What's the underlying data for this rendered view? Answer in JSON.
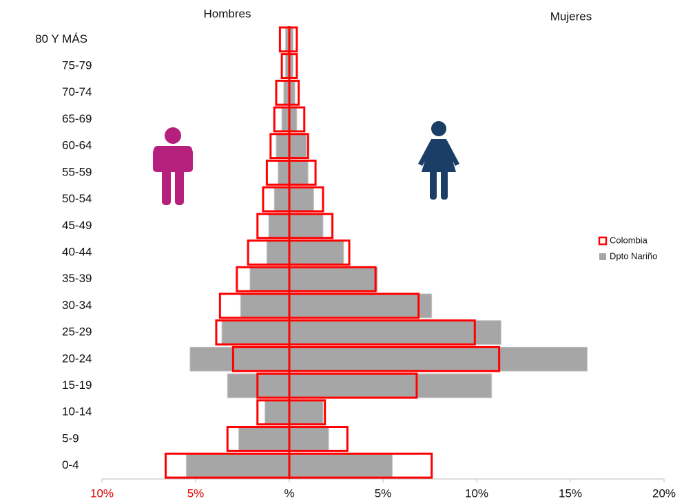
{
  "chart_data": {
    "type": "population-pyramid",
    "left_label": "Hombres",
    "right_label": "Mujeres",
    "categories": [
      "80 Y MÁS",
      "75-79",
      "70-74",
      "65-69",
      "60-64",
      "55-59",
      "50-54",
      "45-49",
      "40-44",
      "35-39",
      "30-34",
      "25-29",
      "20-24",
      "15-19",
      "10-14",
      "5-9",
      "0-4"
    ],
    "series": [
      {
        "name": "Dpto Nariño",
        "color": "#a6a6a6",
        "style": "filled",
        "hombres": [
          -0.2,
          -0.2,
          -0.3,
          -0.4,
          -0.7,
          -0.6,
          -0.8,
          -1.1,
          -1.2,
          -2.1,
          -2.6,
          -3.6,
          -5.3,
          -3.3,
          -1.3,
          -2.7,
          -5.5
        ],
        "mujeres": [
          0.2,
          0.2,
          0.3,
          0.4,
          0.9,
          1.0,
          1.3,
          1.8,
          2.9,
          4.7,
          7.6,
          11.3,
          15.9,
          10.8,
          1.8,
          2.1,
          5.5
        ]
      },
      {
        "name": "Colombia",
        "color": "#ff0000",
        "style": "outline",
        "hombres": [
          -0.5,
          -0.4,
          -0.7,
          -0.8,
          -1.0,
          -1.2,
          -1.4,
          -1.7,
          -2.2,
          -2.8,
          -3.7,
          -3.9,
          -3.0,
          -1.7,
          -1.7,
          -3.3,
          -6.6
        ],
        "mujeres": [
          0.4,
          0.4,
          0.5,
          0.8,
          1.0,
          1.4,
          1.8,
          2.3,
          3.2,
          4.6,
          6.9,
          9.9,
          11.2,
          6.8,
          1.9,
          3.1,
          7.6
        ]
      }
    ],
    "xlim": [
      -10,
      20
    ],
    "xticks": [
      {
        "value": -10,
        "label": "10%"
      },
      {
        "value": -5,
        "label": "5%"
      },
      {
        "value": 0,
        "label": "%"
      },
      {
        "value": 5,
        "label": "5%"
      },
      {
        "value": 10,
        "label": "10%"
      },
      {
        "value": 15,
        "label": "15%"
      },
      {
        "value": 20,
        "label": "20%"
      }
    ],
    "negative_tick_color": "#e00000"
  }
}
